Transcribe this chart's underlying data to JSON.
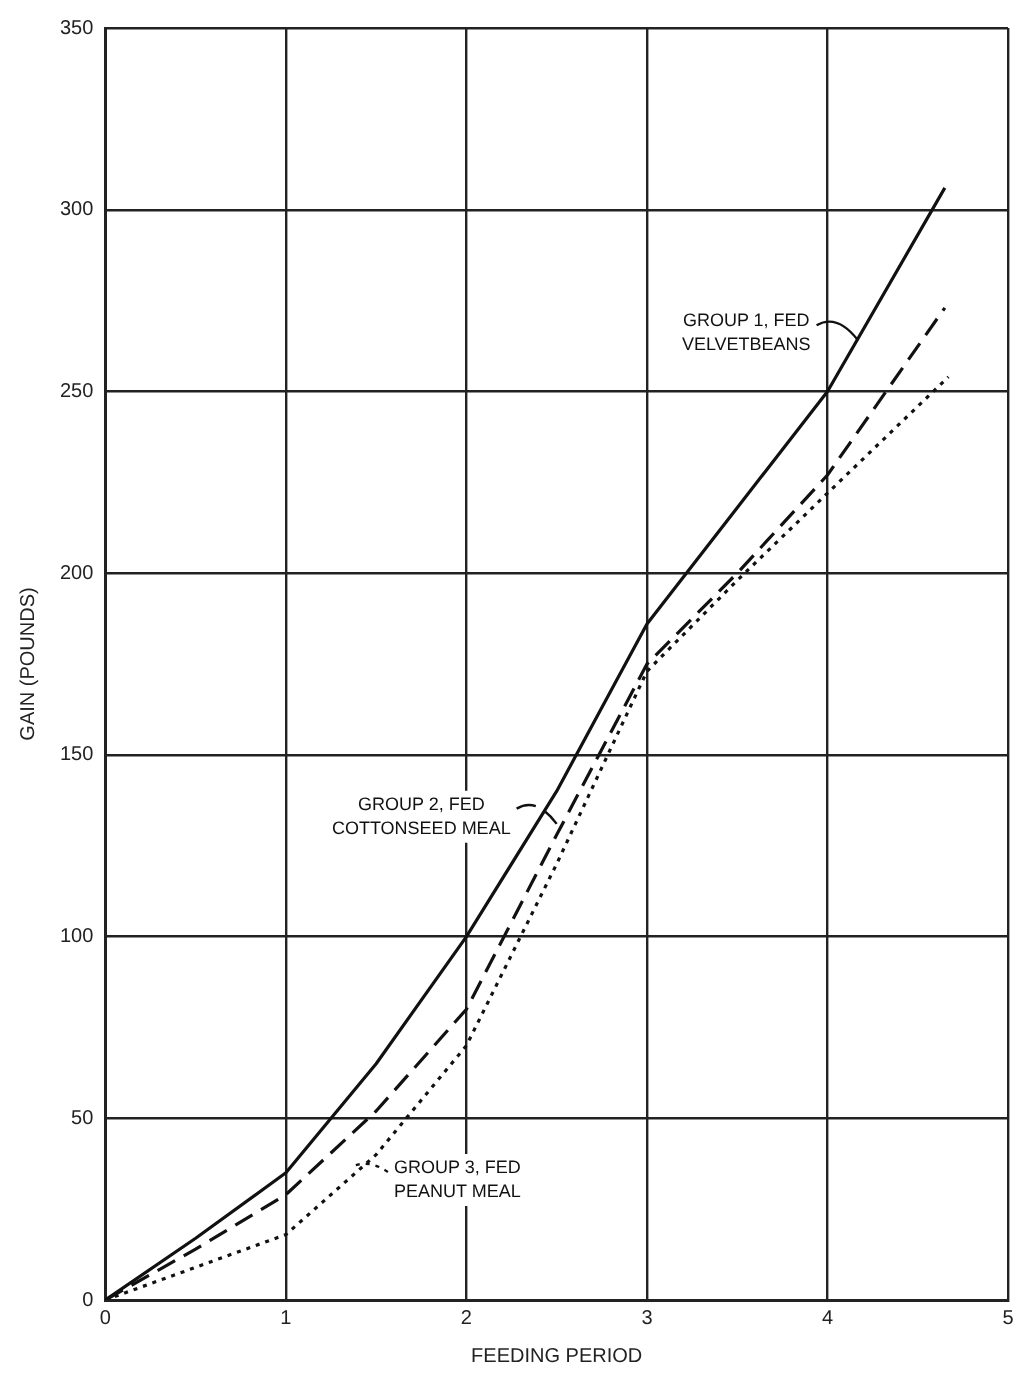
{
  "chart_data": {
    "type": "line",
    "xlabel": "FEEDING PERIOD",
    "ylabel": "GAIN (POUNDS)",
    "xlim": [
      0,
      5
    ],
    "xticks": [
      0,
      1,
      2,
      3,
      4,
      5
    ],
    "ylim": [
      0,
      350
    ],
    "yticks": [
      0,
      50,
      100,
      150,
      200,
      250,
      300,
      350
    ],
    "grid": true,
    "legend": "center",
    "marker": "none",
    "series": [
      {
        "name": "GROUP 1, FED VELVETBEANS",
        "color": "#111111",
        "line_style": "solid",
        "x": [
          0,
          0.5,
          1,
          1.5,
          2,
          2.5,
          3,
          3.5,
          4,
          4.65
        ],
        "values": [
          0,
          17,
          35,
          65,
          100,
          140,
          186,
          218,
          250,
          306
        ]
      },
      {
        "name": "GROUP 2, FED COTTONSEED MEAL",
        "color": "#111111",
        "line_style": "dashed",
        "x": [
          0,
          0.5,
          1,
          1.5,
          2,
          2.5,
          3,
          3.5,
          4,
          4.65
        ],
        "values": [
          0,
          14,
          29,
          52,
          80,
          128,
          175,
          200,
          227,
          273
        ]
      },
      {
        "name": "GROUP 3, FED PEANUT MEAL",
        "color": "#111111",
        "line_style": "dotted",
        "x": [
          0,
          0.5,
          1,
          1.5,
          2,
          2.5,
          3,
          3.5,
          4,
          4.67
        ],
        "values": [
          0,
          9,
          18,
          40,
          70,
          120,
          173,
          198,
          222,
          254
        ]
      }
    ]
  }
}
